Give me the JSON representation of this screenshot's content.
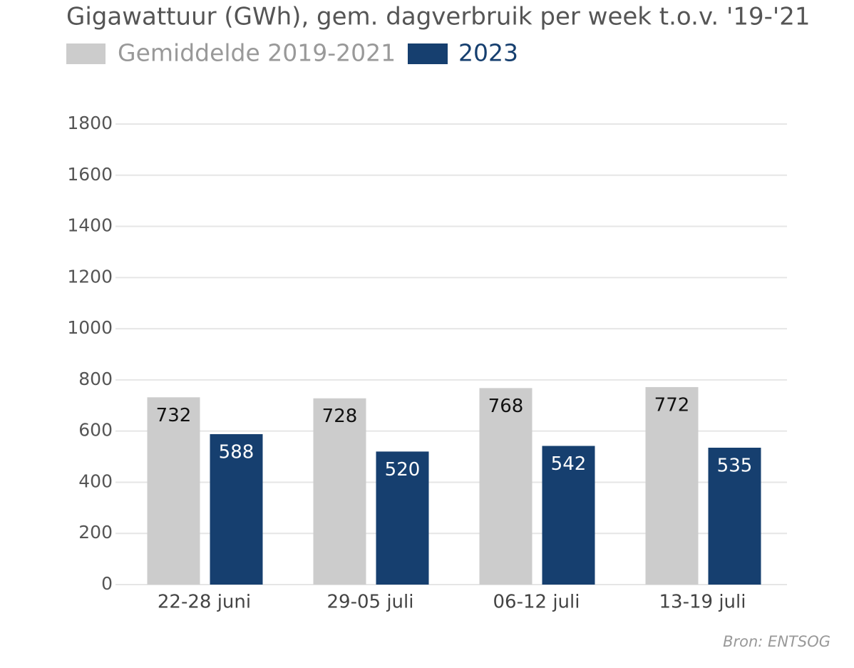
{
  "chart_data": {
    "type": "bar",
    "title": "Gigawattuur (GWh), gem. dagverbruik per week t.o.v. '19-'21",
    "source": "Bron: ENTSOG",
    "categories": [
      "22-28 juni",
      "29-05 juli",
      "06-12 juli",
      "13-19 juli"
    ],
    "series": [
      {
        "name": "Gemiddelde 2019-2021",
        "color": "#cccccc",
        "values": [
          732,
          728,
          768,
          772
        ]
      },
      {
        "name": "2023",
        "color": "#163f6f",
        "values": [
          588,
          520,
          542,
          535
        ]
      }
    ],
    "ylim": [
      0,
      1800
    ],
    "yticks": [
      0,
      200,
      400,
      600,
      800,
      1000,
      1200,
      1400,
      1600,
      1800
    ],
    "grid": true
  }
}
